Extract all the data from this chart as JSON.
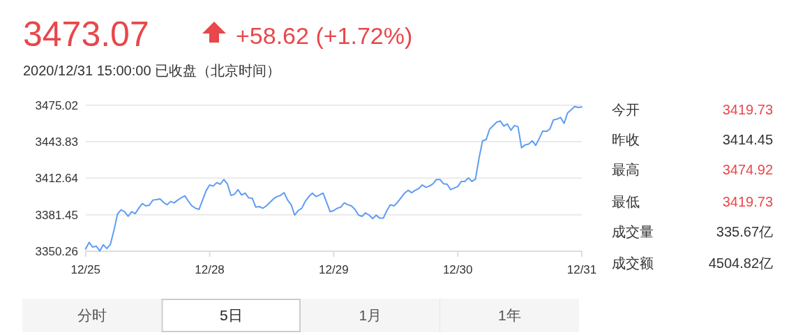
{
  "chart_data": [
    {
      "type": "line",
      "title": "3473.07",
      "subtitle": "+58.62 (+1.72%)",
      "annotations": [
        "2020/12/31 15:00:00 已收盘（北京时间）"
      ],
      "categories": [
        "12/25",
        null,
        null,
        null,
        null,
        null,
        null,
        null,
        null,
        null,
        null,
        null,
        null,
        null,
        null,
        null,
        null,
        null,
        null,
        null,
        null,
        null,
        null,
        null,
        null,
        null,
        null,
        null,
        null,
        null,
        null,
        null,
        null,
        null,
        null,
        "12/28",
        null,
        null,
        null,
        null,
        null,
        null,
        null,
        null,
        null,
        null,
        null,
        null,
        null,
        null,
        null,
        null,
        null,
        null,
        null,
        null,
        null,
        null,
        null,
        null,
        null,
        null,
        null,
        null,
        null,
        null,
        null,
        null,
        null,
        null,
        "12/29",
        null,
        null,
        null,
        null,
        null,
        null,
        null,
        null,
        null,
        null,
        null,
        null,
        null,
        null,
        null,
        null,
        null,
        null,
        null,
        null,
        null,
        null,
        null,
        null,
        null,
        null,
        null,
        null,
        null,
        null,
        null,
        null,
        null,
        null,
        "12/30",
        null,
        null,
        null,
        null,
        null,
        null,
        null,
        null,
        null,
        null,
        null,
        null,
        null,
        null,
        null,
        null,
        null,
        null,
        null,
        null,
        null,
        null,
        null,
        null,
        null,
        null,
        null,
        null,
        null,
        null,
        null,
        null,
        null,
        null,
        "12/31"
      ],
      "ylim": [
        3350.26,
        3475.02
      ],
      "yticks": [
        3350.26,
        3381.45,
        3412.64,
        3443.83,
        3475.02
      ],
      "grid": "y",
      "marker": "none",
      "line_style": "solid",
      "series": [
        {
          "color": "#5f9cf5",
          "values": [
            3352.2,
            3357.8,
            3353.8,
            3354.6,
            3350.6,
            3355.8,
            3352.6,
            3356.2,
            3368.1,
            3382.0,
            3385.6,
            3384.0,
            3380.1,
            3384.0,
            3382.4,
            3387.0,
            3391.0,
            3389.0,
            3389.6,
            3394.0,
            3394.4,
            3395.0,
            3392.0,
            3390.0,
            3392.8,
            3391.6,
            3394.0,
            3396.0,
            3397.6,
            3393.0,
            3389.0,
            3387.0,
            3386.0,
            3394.0,
            3401.9,
            3406.9,
            3405.9,
            3408.9,
            3407.5,
            3411.5,
            3407.9,
            3397.9,
            3398.9,
            3402.9,
            3398.3,
            3399.9,
            3395.9,
            3395.6,
            3388.0,
            3388.4,
            3387.0,
            3389.0,
            3392.0,
            3395.0,
            3397.0,
            3397.9,
            3400.3,
            3394.0,
            3390.0,
            3381.1,
            3385.0,
            3387.0,
            3393.0,
            3397.0,
            3399.9,
            3397.0,
            3398.3,
            3399.9,
            3392.0,
            3384.0,
            3385.0,
            3387.0,
            3388.0,
            3391.6,
            3390.0,
            3389.0,
            3386.0,
            3381.1,
            3380.1,
            3383.0,
            3381.1,
            3378.1,
            3381.1,
            3378.5,
            3378.5,
            3385.0,
            3390.0,
            3389.0,
            3392.0,
            3395.9,
            3399.9,
            3402.3,
            3400.3,
            3402.3,
            3403.9,
            3406.9,
            3404.9,
            3405.9,
            3407.9,
            3411.5,
            3411.5,
            3407.9,
            3407.5,
            3402.9,
            3404.3,
            3405.5,
            3409.9,
            3409.9,
            3412.9,
            3409.9,
            3411.9,
            3429.7,
            3444.6,
            3445.6,
            3454.6,
            3457.6,
            3460.5,
            3461.5,
            3457.2,
            3459.0,
            3453.6,
            3457.6,
            3456.6,
            3438.7,
            3441.1,
            3441.7,
            3444.6,
            3440.7,
            3446.6,
            3453.0,
            3452.6,
            3454.6,
            3462.5,
            3463.1,
            3464.5,
            3459.5,
            3468.5,
            3471.1,
            3473.9,
            3473.1,
            3473.5
          ]
        }
      ]
    },
    {
      "type": "other",
      "categories": [
        "今开",
        "昨收",
        "最高",
        "最低",
        "成交量",
        "成交额"
      ],
      "value_labels": [
        "3419.73",
        "3414.45",
        "3474.92",
        "3419.73",
        "335.67亿",
        "4504.82亿"
      ],
      "colors": [
        "#e8474b",
        "#333333",
        "#e8474b",
        "#e8474b",
        "#333333",
        "#333333"
      ]
    },
    {
      "type": "other",
      "categories": [
        "分时",
        "5日",
        "1月",
        "1年"
      ],
      "colors": [
        "#f5f5f5",
        "#ffffff",
        "#f5f5f5",
        "#f5f5f5"
      ]
    }
  ]
}
